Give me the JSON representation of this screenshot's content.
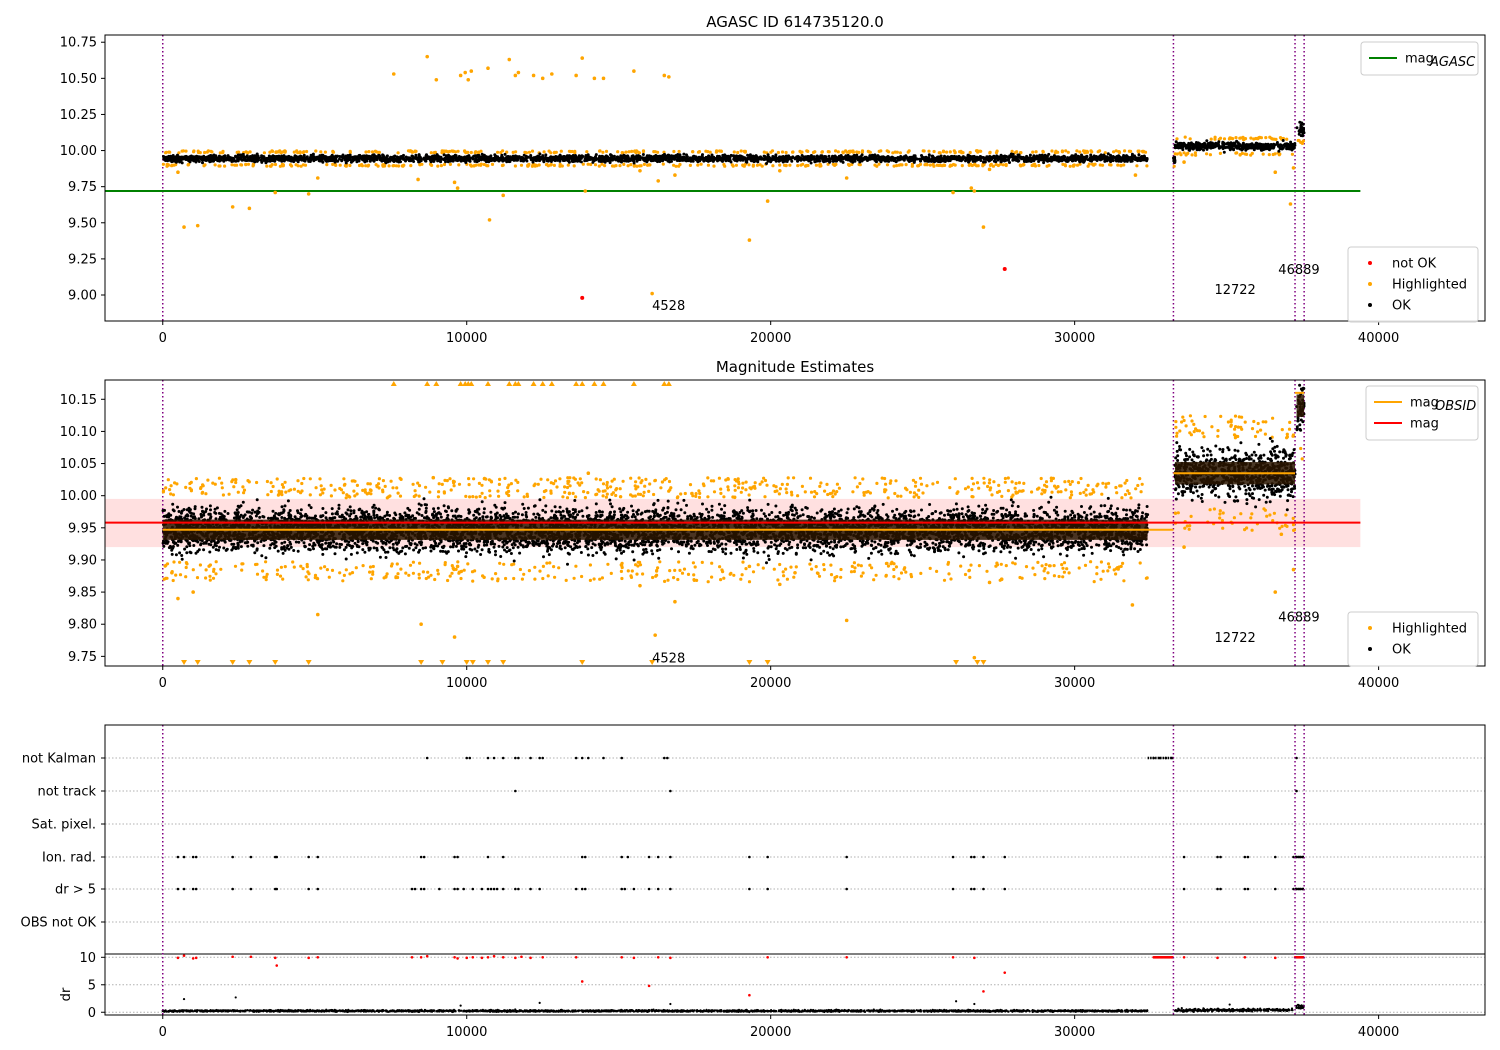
{
  "chart_data": [
    {
      "type": "scatter",
      "title": "AGASC ID 614735120.0",
      "xlim": [
        -1900,
        43500
      ],
      "ylim": [
        8.82,
        10.8
      ],
      "x_ticks": [
        0,
        10000,
        20000,
        30000,
        40000
      ],
      "y_ticks": [
        9.0,
        9.25,
        9.5,
        9.75,
        10.0,
        10.25,
        10.5,
        10.75
      ],
      "y_tick_labels": [
        "9.00",
        "9.25",
        "9.50",
        "9.75",
        "10.00",
        "10.25",
        "10.50",
        "10.75"
      ],
      "obsid_boundaries": [
        0,
        33250,
        37250,
        37550
      ],
      "mag_agasc": 9.72,
      "mag_agasc_line_x": [
        -1900,
        39400
      ],
      "legend_upper": [
        {
          "label": "mag",
          "sub": "AGASC",
          "color": "#008000",
          "kind": "line"
        }
      ],
      "legend_lower": [
        {
          "label": "not OK",
          "color": "#ff0000",
          "kind": "dot"
        },
        {
          "label": "Highlighted",
          "color": "#ffa500",
          "kind": "dot"
        },
        {
          "label": "OK",
          "color": "#000000",
          "kind": "dot"
        }
      ],
      "annotations": [
        {
          "text": "4528",
          "x": 16100,
          "y": 8.93
        },
        {
          "text": "12722",
          "x": 34600,
          "y": 9.04
        },
        {
          "text": "46889",
          "x": 36700,
          "y": 9.18
        }
      ],
      "ok_segments": [
        {
          "x0": 0,
          "x1": 32400,
          "center": 9.945,
          "spread": 0.03
        },
        {
          "x0": 33250,
          "x1": 33300,
          "center": 9.935,
          "spread": 0.03
        },
        {
          "x0": 33300,
          "x1": 37250,
          "center": 10.03,
          "spread": 0.035
        },
        {
          "x0": 37300,
          "x1": 37550,
          "center": 10.15,
          "spread": 0.06
        }
      ],
      "highlighted_points": [
        {
          "x": 7600,
          "y": 10.53
        },
        {
          "x": 8700,
          "y": 10.65
        },
        {
          "x": 9000,
          "y": 10.49
        },
        {
          "x": 9800,
          "y": 10.52
        },
        {
          "x": 9950,
          "y": 10.54
        },
        {
          "x": 10050,
          "y": 10.49
        },
        {
          "x": 10150,
          "y": 10.55
        },
        {
          "x": 10700,
          "y": 10.57
        },
        {
          "x": 11400,
          "y": 10.63
        },
        {
          "x": 11600,
          "y": 10.52
        },
        {
          "x": 11700,
          "y": 10.54
        },
        {
          "x": 12200,
          "y": 10.52
        },
        {
          "x": 12500,
          "y": 10.5
        },
        {
          "x": 12800,
          "y": 10.53
        },
        {
          "x": 13600,
          "y": 10.52
        },
        {
          "x": 13800,
          "y": 10.64
        },
        {
          "x": 14200,
          "y": 10.5
        },
        {
          "x": 14500,
          "y": 10.5
        },
        {
          "x": 15500,
          "y": 10.55
        },
        {
          "x": 16500,
          "y": 10.52
        },
        {
          "x": 16650,
          "y": 10.51
        },
        {
          "x": 500,
          "y": 9.85
        },
        {
          "x": 700,
          "y": 9.47
        },
        {
          "x": 1150,
          "y": 9.48
        },
        {
          "x": 2300,
          "y": 9.61
        },
        {
          "x": 2850,
          "y": 9.6
        },
        {
          "x": 3700,
          "y": 9.71
        },
        {
          "x": 4800,
          "y": 9.7
        },
        {
          "x": 5100,
          "y": 9.81
        },
        {
          "x": 8400,
          "y": 9.8
        },
        {
          "x": 9600,
          "y": 9.78
        },
        {
          "x": 9700,
          "y": 9.74
        },
        {
          "x": 10750,
          "y": 9.52
        },
        {
          "x": 11200,
          "y": 9.69
        },
        {
          "x": 13900,
          "y": 9.72
        },
        {
          "x": 15700,
          "y": 9.86
        },
        {
          "x": 16100,
          "y": 9.01
        },
        {
          "x": 16300,
          "y": 9.79
        },
        {
          "x": 16850,
          "y": 9.83
        },
        {
          "x": 19300,
          "y": 9.38
        },
        {
          "x": 19900,
          "y": 9.65
        },
        {
          "x": 20300,
          "y": 9.86
        },
        {
          "x": 22500,
          "y": 9.81
        },
        {
          "x": 26000,
          "y": 9.71
        },
        {
          "x": 26600,
          "y": 9.74
        },
        {
          "x": 26700,
          "y": 9.72
        },
        {
          "x": 27000,
          "y": 9.47
        },
        {
          "x": 27200,
          "y": 9.87
        },
        {
          "x": 32000,
          "y": 9.83
        },
        {
          "x": 33600,
          "y": 9.92
        },
        {
          "x": 36600,
          "y": 9.85
        },
        {
          "x": 37100,
          "y": 9.63
        },
        {
          "x": 37200,
          "y": 9.88
        }
      ],
      "not_ok_points": [
        {
          "x": 13800,
          "y": 8.98
        },
        {
          "x": 27700,
          "y": 9.18
        }
      ]
    },
    {
      "type": "scatter",
      "title": "Magnitude Estimates",
      "xlim": [
        -1900,
        43500
      ],
      "ylim": [
        9.735,
        10.18
      ],
      "x_ticks": [
        0,
        10000,
        20000,
        30000,
        40000
      ],
      "y_ticks": [
        9.75,
        9.8,
        9.85,
        9.9,
        9.95,
        10.0,
        10.05,
        10.1,
        10.15
      ],
      "y_tick_labels": [
        "9.75",
        "9.80",
        "9.85",
        "9.90",
        "9.95",
        "10.00",
        "10.05",
        "10.10",
        "10.15"
      ],
      "obsid_boundaries": [
        0,
        33250,
        37250,
        37550
      ],
      "mag": 9.958,
      "mag_band": [
        9.92,
        9.995
      ],
      "mag_line_x": [
        -1900,
        39400
      ],
      "mag_obsid_segments": [
        {
          "x0": 0,
          "x1": 33250,
          "y": 9.947
        },
        {
          "x0": 33250,
          "x1": 37250,
          "y": 10.035
        },
        {
          "x0": 37250,
          "x1": 37550,
          "y": 10.16
        }
      ],
      "legend_upper": [
        {
          "label": "mag",
          "sub": "OBSID",
          "color": "#ffa500",
          "kind": "line"
        },
        {
          "label": "mag",
          "sub": "",
          "color": "#ff0000",
          "kind": "line"
        }
      ],
      "legend_lower": [
        {
          "label": "Highlighted",
          "color": "#ffa500",
          "kind": "dot"
        },
        {
          "label": "OK",
          "color": "#000000",
          "kind": "dot"
        }
      ],
      "annotations": [
        {
          "text": "4528",
          "x": 16100,
          "y": 9.748
        },
        {
          "text": "12722",
          "x": 34600,
          "y": 9.78
        },
        {
          "text": "46889",
          "x": 36700,
          "y": 9.812
        }
      ],
      "ok_segments": [
        {
          "x0": 0,
          "x1": 32400,
          "center": 9.947,
          "spread": 0.045
        },
        {
          "x0": 33300,
          "x1": 37250,
          "center": 10.035,
          "spread": 0.05
        },
        {
          "x0": 37300,
          "x1": 37550,
          "center": 10.14,
          "spread": 0.05
        }
      ],
      "clipped_top_x": [
        7600,
        8700,
        9000,
        9800,
        9950,
        10050,
        10150,
        10700,
        11400,
        11600,
        11700,
        12200,
        12500,
        12800,
        13600,
        13800,
        14200,
        14500,
        15500,
        16500,
        16650
      ],
      "clipped_bottom_x": [
        700,
        1150,
        2300,
        2850,
        3700,
        4800,
        8500,
        9200,
        10000,
        10200,
        10700,
        11200,
        13800,
        16100,
        19300,
        19900,
        26100,
        26800,
        27000
      ],
      "highlighted_points": [
        {
          "x": 300,
          "y": 9.88
        },
        {
          "x": 500,
          "y": 9.84
        },
        {
          "x": 1000,
          "y": 9.85
        },
        {
          "x": 2400,
          "y": 10.025
        },
        {
          "x": 5100,
          "y": 9.815
        },
        {
          "x": 8500,
          "y": 9.8
        },
        {
          "x": 8900,
          "y": 10.028
        },
        {
          "x": 9600,
          "y": 9.78
        },
        {
          "x": 9700,
          "y": 9.89
        },
        {
          "x": 14000,
          "y": 10.035
        },
        {
          "x": 15700,
          "y": 9.86
        },
        {
          "x": 16200,
          "y": 9.783
        },
        {
          "x": 16850,
          "y": 9.835
        },
        {
          "x": 19300,
          "y": 9.89
        },
        {
          "x": 20300,
          "y": 9.862
        },
        {
          "x": 20800,
          "y": 9.88
        },
        {
          "x": 22500,
          "y": 9.806
        },
        {
          "x": 26700,
          "y": 9.748
        },
        {
          "x": 27200,
          "y": 9.865
        },
        {
          "x": 27600,
          "y": 9.87
        },
        {
          "x": 31900,
          "y": 9.83
        },
        {
          "x": 33600,
          "y": 9.92
        },
        {
          "x": 36600,
          "y": 9.85
        },
        {
          "x": 36800,
          "y": 9.94
        },
        {
          "x": 37200,
          "y": 9.885
        }
      ]
    },
    {
      "type": "scatter",
      "title": "",
      "xlim": [
        -1900,
        43500
      ],
      "x_ticks": [
        0,
        10000,
        20000,
        30000,
        40000
      ],
      "obsid_boundaries": [
        0,
        33250,
        37250,
        37550
      ],
      "flag_rows": [
        "not Kalman",
        "not track",
        "Sat. pixel.",
        "Ion. rad.",
        "dr > 5",
        "OBS not OK"
      ],
      "dr_ylabel": "dr",
      "dr_ylim": [
        -0.5,
        10.6
      ],
      "dr_ticks": [
        0,
        5,
        10
      ],
      "flags": {
        "not Kalman": [
          8700,
          10000,
          10100,
          10700,
          10900,
          11200,
          11600,
          11700,
          12100,
          12400,
          12500,
          13600,
          13800,
          14000,
          14500,
          15100,
          16500,
          16600,
          32600,
          32800,
          33000,
          33200,
          37300
        ],
        "not track": [
          11600,
          16700,
          37300
        ],
        "Sat. pixel.": [],
        "Ion. rad.": [
          500,
          700,
          1000,
          1100,
          2300,
          2900,
          3700,
          3750,
          4800,
          5100,
          8500,
          8600,
          9600,
          9700,
          10700,
          11200,
          13800,
          13900,
          15100,
          15300,
          16000,
          16300,
          16700,
          19300,
          19900,
          22500,
          26000,
          26600,
          26700,
          27000,
          27700,
          33600,
          34700,
          34800,
          35600,
          35700,
          36600,
          37200,
          37300,
          37400,
          37500
        ],
        "dr > 5": [
          500,
          700,
          1000,
          1100,
          2300,
          2900,
          3700,
          3750,
          4800,
          5100,
          8200,
          8300,
          8500,
          8600,
          9100,
          9600,
          9700,
          9900,
          10200,
          10500,
          10700,
          10800,
          10900,
          11000,
          11200,
          11600,
          11700,
          12100,
          12400,
          13600,
          13800,
          13900,
          15100,
          15200,
          15500,
          16000,
          16300,
          16700,
          19300,
          19900,
          22500,
          26000,
          26600,
          26700,
          27000,
          27700,
          33600,
          34700,
          34800,
          35600,
          35700,
          36600,
          37200,
          37300,
          37400,
          37500
        ],
        "OBS not OK": []
      },
      "dr_red_points": [
        {
          "x": 500,
          "y": 9.9
        },
        {
          "x": 700,
          "y": 10.3
        },
        {
          "x": 1000,
          "y": 9.8
        },
        {
          "x": 1100,
          "y": 9.9
        },
        {
          "x": 2300,
          "y": 10.1
        },
        {
          "x": 2900,
          "y": 10.1
        },
        {
          "x": 3700,
          "y": 9.9
        },
        {
          "x": 3750,
          "y": 8.5
        },
        {
          "x": 4800,
          "y": 9.9
        },
        {
          "x": 5100,
          "y": 10.0
        },
        {
          "x": 8200,
          "y": 10.0
        },
        {
          "x": 8500,
          "y": 10.0
        },
        {
          "x": 8700,
          "y": 10.2
        },
        {
          "x": 9600,
          "y": 10.0
        },
        {
          "x": 9700,
          "y": 9.8
        },
        {
          "x": 10000,
          "y": 9.9
        },
        {
          "x": 10200,
          "y": 10.0
        },
        {
          "x": 10500,
          "y": 9.9
        },
        {
          "x": 10700,
          "y": 10.0
        },
        {
          "x": 10900,
          "y": 10.2
        },
        {
          "x": 11200,
          "y": 10.0
        },
        {
          "x": 11600,
          "y": 9.9
        },
        {
          "x": 11800,
          "y": 10.1
        },
        {
          "x": 12100,
          "y": 9.9
        },
        {
          "x": 12500,
          "y": 10.0
        },
        {
          "x": 13600,
          "y": 10.0
        },
        {
          "x": 13800,
          "y": 5.6
        },
        {
          "x": 15100,
          "y": 10.0
        },
        {
          "x": 15500,
          "y": 9.9
        },
        {
          "x": 16000,
          "y": 4.8
        },
        {
          "x": 16300,
          "y": 10.0
        },
        {
          "x": 16700,
          "y": 9.9
        },
        {
          "x": 19300,
          "y": 3.1
        },
        {
          "x": 19900,
          "y": 10.0
        },
        {
          "x": 22500,
          "y": 10.0
        },
        {
          "x": 26000,
          "y": 10.0
        },
        {
          "x": 26700,
          "y": 9.9
        },
        {
          "x": 27000,
          "y": 3.8
        },
        {
          "x": 27700,
          "y": 7.2
        },
        {
          "x": 33600,
          "y": 10.0
        },
        {
          "x": 34700,
          "y": 9.9
        },
        {
          "x": 35600,
          "y": 10.0
        },
        {
          "x": 36600,
          "y": 9.9
        }
      ],
      "dr_red_ranges": [
        {
          "x0": 32600,
          "x1": 33250,
          "y": 10.0
        },
        {
          "x0": 37250,
          "x1": 37550,
          "y": 10.0
        }
      ],
      "dr_black_segments": [
        {
          "x0": 0,
          "x1": 32400,
          "center": 0.25,
          "spread": 0.2
        },
        {
          "x0": 33300,
          "x1": 37200,
          "center": 0.4,
          "spread": 0.3
        },
        {
          "x0": 37250,
          "x1": 37550,
          "center": 1.0,
          "spread": 0.8
        }
      ],
      "dr_black_points": [
        {
          "x": 700,
          "y": 2.4
        },
        {
          "x": 2400,
          "y": 2.7
        },
        {
          "x": 9800,
          "y": 1.2
        },
        {
          "x": 12400,
          "y": 1.7
        },
        {
          "x": 16700,
          "y": 1.5
        },
        {
          "x": 26100,
          "y": 2.0
        },
        {
          "x": 26700,
          "y": 1.5
        },
        {
          "x": 35100,
          "y": 1.4
        }
      ]
    }
  ]
}
